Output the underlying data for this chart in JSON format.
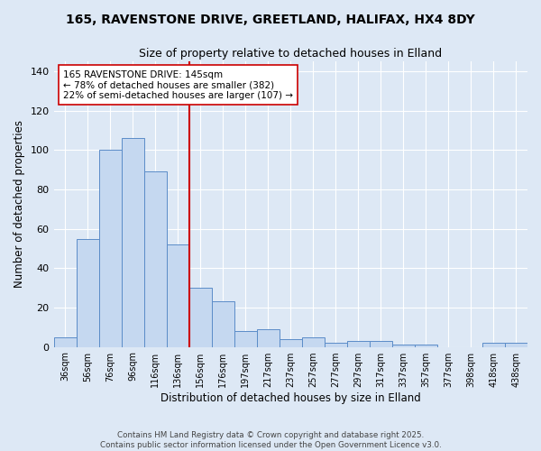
{
  "title_line1": "165, RAVENSTONE DRIVE, GREETLAND, HALIFAX, HX4 8DY",
  "title_line2": "Size of property relative to detached houses in Elland",
  "xlabel": "Distribution of detached houses by size in Elland",
  "ylabel": "Number of detached properties",
  "bar_labels": [
    "36sqm",
    "56sqm",
    "76sqm",
    "96sqm",
    "116sqm",
    "136sqm",
    "156sqm",
    "176sqm",
    "197sqm",
    "217sqm",
    "237sqm",
    "257sqm",
    "277sqm",
    "297sqm",
    "317sqm",
    "337sqm",
    "357sqm",
    "377sqm",
    "398sqm",
    "418sqm",
    "438sqm"
  ],
  "bar_values": [
    5,
    55,
    100,
    106,
    89,
    52,
    30,
    23,
    8,
    9,
    4,
    5,
    2,
    3,
    3,
    1,
    1,
    0,
    0,
    2,
    2
  ],
  "bar_color": "#c5d8f0",
  "bar_edge_color": "#5b8cc8",
  "bg_color": "#dde8f5",
  "plot_bg_color": "#dde8f5",
  "grid_color": "#ffffff",
  "vline_color": "#cc0000",
  "annotation_text": "165 RAVENSTONE DRIVE: 145sqm\n← 78% of detached houses are smaller (382)\n22% of semi-detached houses are larger (107) →",
  "annotation_box_color": "#ffffff",
  "annotation_box_edge": "#cc0000",
  "ylim": [
    0,
    145
  ],
  "yticks": [
    0,
    20,
    40,
    60,
    80,
    100,
    120,
    140
  ],
  "footnote": "Contains HM Land Registry data © Crown copyright and database right 2025.\nContains public sector information licensed under the Open Government Licence v3.0."
}
